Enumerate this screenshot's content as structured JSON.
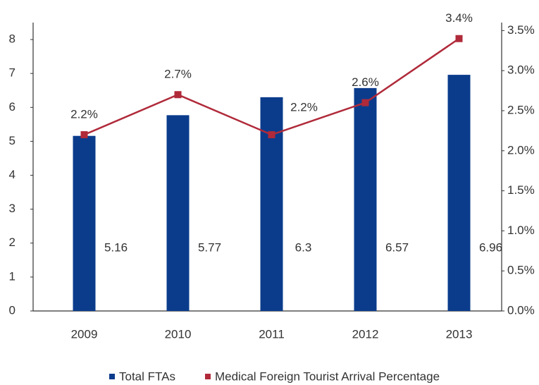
{
  "chart_data": {
    "type": "bar",
    "categories": [
      "2009",
      "2010",
      "2011",
      "2012",
      "2013"
    ],
    "series": [
      {
        "name": "Total FTAs",
        "type": "bar",
        "color": "#0b3c8c",
        "values": [
          5.16,
          5.77,
          6.3,
          6.57,
          6.96
        ]
      },
      {
        "name": "Medical Foreign Tourist Arrival Percentage",
        "type": "line",
        "axis": "y2",
        "color": "#b02a3a",
        "values": [
          2.2,
          2.7,
          2.2,
          2.6,
          3.4
        ],
        "value_labels": [
          "2.2%",
          "2.7%",
          "2.2%",
          "2.6%",
          "3.4%"
        ]
      }
    ],
    "ylim": [
      0,
      8.5
    ],
    "yticks": [
      0,
      1,
      2,
      3,
      4,
      5,
      6,
      7,
      8
    ],
    "y2lim": [
      0,
      3.6
    ],
    "y2ticks": [
      {
        "value": 0,
        "label": "0.0%"
      },
      {
        "value": 0.5,
        "label": "0.5%"
      },
      {
        "value": 1,
        "label": "1.0%"
      },
      {
        "value": 1.5,
        "label": "1.5%"
      },
      {
        "value": 2,
        "label": "2.0%"
      },
      {
        "value": 2.5,
        "label": "2.5%"
      },
      {
        "value": 3,
        "label": "3.0%"
      },
      {
        "value": 3.5,
        "label": "3.5%"
      }
    ],
    "legend": "bottom"
  }
}
